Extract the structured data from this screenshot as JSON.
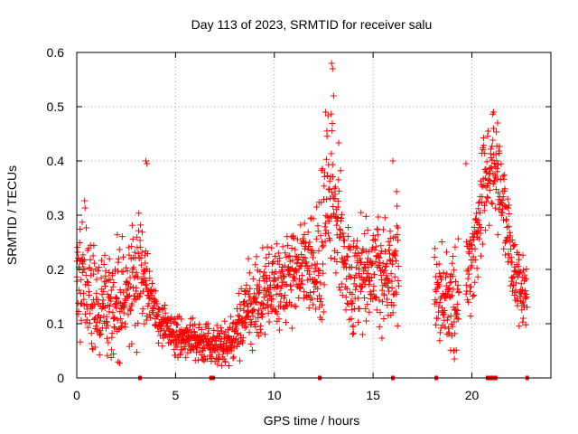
{
  "chart_data": {
    "type": "scatter",
    "title": "Day 113 of 2023, SRMTID for receiver salu",
    "xlabel": "GPS time / hours",
    "ylabel": "SRMTID / TECUs",
    "xlim": [
      0,
      24
    ],
    "ylim": [
      0,
      0.6
    ],
    "xticks": [
      0,
      5,
      10,
      15,
      20
    ],
    "xtick_labels": [
      "0",
      "5",
      "10",
      "15",
      "20"
    ],
    "yticks": [
      0,
      0.1,
      0.2,
      0.3,
      0.4,
      0.5,
      0.6
    ],
    "ytick_labels": [
      "0",
      "0.1",
      "0.2",
      "0.3",
      "0.4",
      "0.5",
      "0.6"
    ],
    "grid": true,
    "marker": "+",
    "color": "#ff0000",
    "series": [
      {
        "name": "SRMTID",
        "profile_x": [
          0,
          0.5,
          1,
          1.5,
          2,
          2.5,
          3,
          3.2,
          3.5,
          4,
          4.5,
          5,
          5.5,
          6,
          6.5,
          7,
          7.5,
          8,
          8.5,
          9,
          9.5,
          10,
          10.5,
          11,
          11.5,
          12,
          12.3,
          12.6,
          12.9,
          13.2,
          13.5,
          14,
          14.5,
          15,
          15.5,
          16,
          16.2,
          18.2,
          18.5,
          19,
          19.5,
          20,
          20.3,
          20.6,
          20.9,
          21.2,
          21.5,
          21.8,
          22,
          22.3,
          22.6,
          22.8
        ],
        "profile_mean": [
          0.18,
          0.2,
          0.12,
          0.14,
          0.13,
          0.15,
          0.19,
          0.22,
          0.17,
          0.12,
          0.09,
          0.08,
          0.07,
          0.07,
          0.06,
          0.06,
          0.06,
          0.08,
          0.12,
          0.14,
          0.15,
          0.17,
          0.18,
          0.2,
          0.22,
          0.2,
          0.22,
          0.3,
          0.35,
          0.28,
          0.22,
          0.18,
          0.2,
          0.22,
          0.2,
          0.19,
          0.2,
          0.16,
          0.15,
          0.14,
          0.17,
          0.22,
          0.28,
          0.34,
          0.38,
          0.4,
          0.35,
          0.29,
          0.22,
          0.18,
          0.17,
          0.16
        ],
        "profile_spread": [
          0.06,
          0.07,
          0.05,
          0.06,
          0.06,
          0.06,
          0.07,
          0.08,
          0.05,
          0.03,
          0.025,
          0.025,
          0.02,
          0.02,
          0.02,
          0.02,
          0.02,
          0.03,
          0.04,
          0.05,
          0.05,
          0.05,
          0.05,
          0.05,
          0.05,
          0.06,
          0.08,
          0.12,
          0.1,
          0.08,
          0.06,
          0.06,
          0.06,
          0.06,
          0.06,
          0.05,
          0.07,
          0.04,
          0.05,
          0.06,
          0.06,
          0.06,
          0.06,
          0.06,
          0.05,
          0.05,
          0.05,
          0.06,
          0.05,
          0.04,
          0.04,
          0.03
        ],
        "gaps": [
          [
            16.3,
            18.1
          ],
          [
            19.35,
            19.7
          ]
        ],
        "outliers": [
          [
            12.9,
            0.58
          ],
          [
            12.95,
            0.57
          ],
          [
            12.6,
            0.49
          ],
          [
            13.0,
            0.52
          ],
          [
            21.1,
            0.49
          ],
          [
            21.3,
            0.47
          ],
          [
            3.5,
            0.4
          ],
          [
            3.55,
            0.395
          ],
          [
            16.0,
            0.4
          ],
          [
            19.7,
            0.395
          ],
          [
            22.6,
            0.11
          ],
          [
            19.1,
            0.05
          ]
        ],
        "zero_markers": [
          3.2,
          12.3,
          16.0,
          18.2,
          20.8,
          20.9,
          21.0,
          21.1,
          21.2,
          22.8,
          6.8,
          6.9
        ]
      }
    ]
  }
}
